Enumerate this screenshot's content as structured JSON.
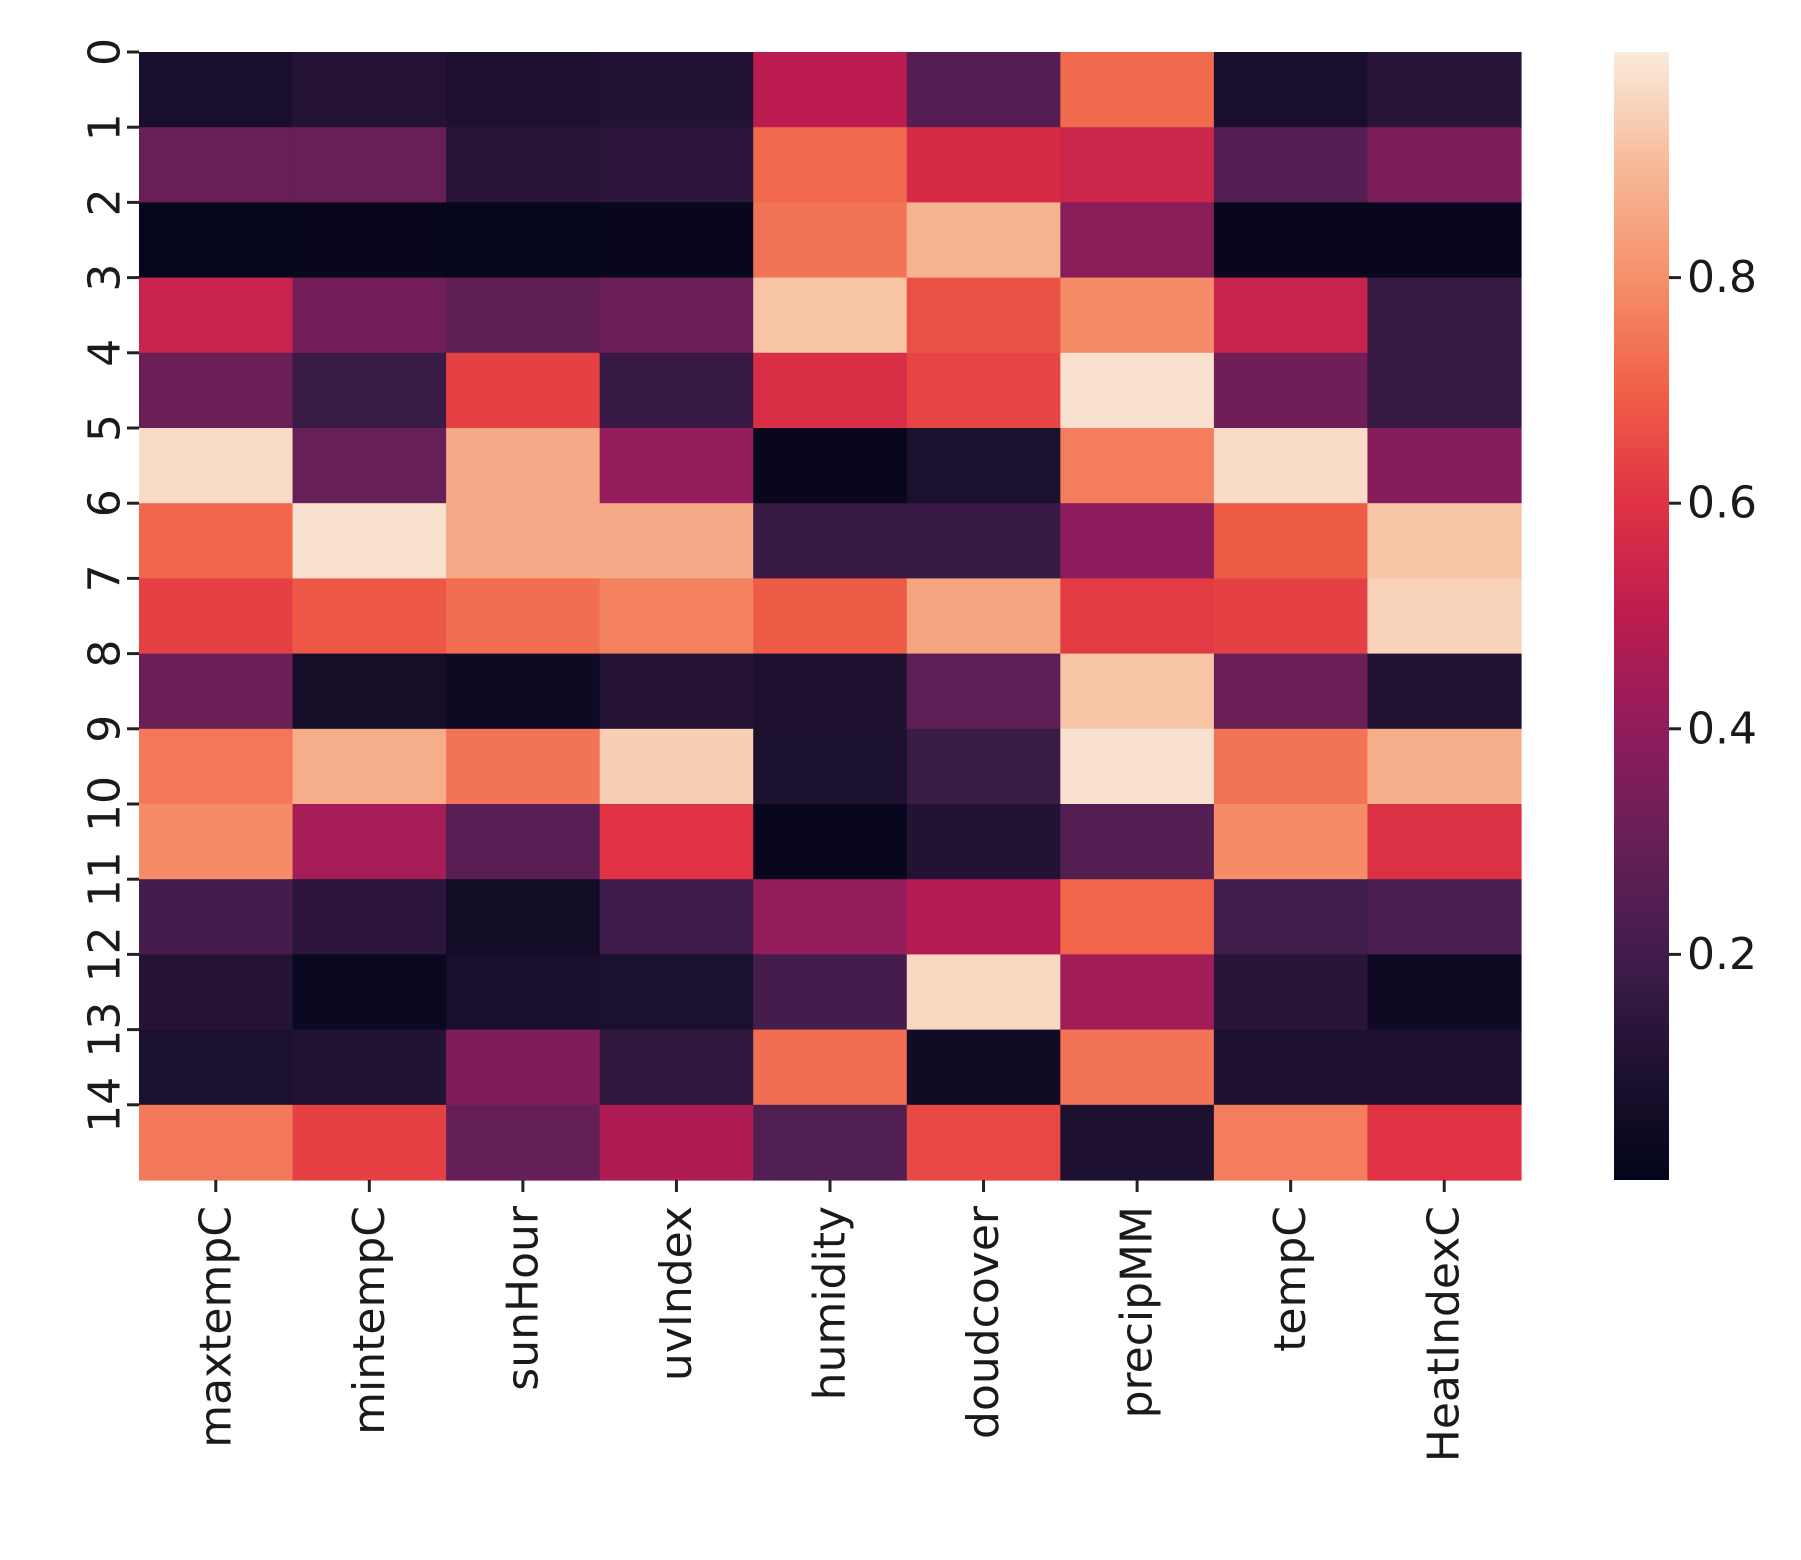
{
  "chart_data": {
    "type": "heatmap",
    "title": "",
    "xlabel": "",
    "ylabel": "",
    "x_categories": [
      "maxtempC",
      "mintempC",
      "sunHour",
      "uvIndex",
      "humidity",
      "doudcover",
      "precipMM",
      "tempC",
      "HeatIndexC"
    ],
    "y_tick_labels": [
      "0",
      "1",
      "2",
      "3",
      "4",
      "5",
      "6",
      "7",
      "8",
      "9",
      "10",
      "11",
      "12",
      "13",
      "14"
    ],
    "values": [
      [
        0.08,
        0.12,
        0.1,
        0.11,
        0.5,
        0.25,
        0.72,
        0.08,
        0.13
      ],
      [
        0.3,
        0.3,
        0.13,
        0.14,
        0.72,
        0.57,
        0.54,
        0.25,
        0.35
      ],
      [
        0.01,
        0.02,
        0.01,
        0.02,
        0.74,
        0.88,
        0.38,
        0.02,
        0.02
      ],
      [
        0.53,
        0.33,
        0.28,
        0.31,
        0.92,
        0.67,
        0.79,
        0.53,
        0.17
      ],
      [
        0.31,
        0.18,
        0.63,
        0.17,
        0.58,
        0.64,
        0.98,
        0.32,
        0.17
      ],
      [
        0.97,
        0.3,
        0.86,
        0.41,
        0.02,
        0.09,
        0.76,
        0.97,
        0.37
      ],
      [
        0.71,
        0.98,
        0.86,
        0.86,
        0.17,
        0.17,
        0.39,
        0.69,
        0.92
      ],
      [
        0.63,
        0.68,
        0.73,
        0.77,
        0.69,
        0.85,
        0.62,
        0.63,
        0.95
      ],
      [
        0.31,
        0.07,
        0.04,
        0.12,
        0.1,
        0.27,
        0.92,
        0.31,
        0.11
      ],
      [
        0.75,
        0.87,
        0.74,
        0.94,
        0.09,
        0.18,
        0.98,
        0.74,
        0.87
      ],
      [
        0.79,
        0.45,
        0.26,
        0.6,
        0.02,
        0.11,
        0.25,
        0.79,
        0.59
      ],
      [
        0.21,
        0.14,
        0.06,
        0.19,
        0.41,
        0.48,
        0.71,
        0.2,
        0.23
      ],
      [
        0.12,
        0.03,
        0.08,
        0.09,
        0.21,
        0.96,
        0.44,
        0.13,
        0.04
      ],
      [
        0.09,
        0.11,
        0.36,
        0.15,
        0.73,
        0.05,
        0.74,
        0.1,
        0.1
      ],
      [
        0.75,
        0.63,
        0.29,
        0.47,
        0.24,
        0.65,
        0.1,
        0.76,
        0.6
      ]
    ],
    "colorbar": {
      "min": 0.0,
      "max": 1.0,
      "ticks": [
        0.2,
        0.4,
        0.6,
        0.8
      ],
      "tick_labels": [
        "0.2",
        "0.4",
        "0.6",
        "0.8"
      ],
      "colormap": "rocket"
    },
    "grid": false,
    "legend": "colorbar-right"
  }
}
